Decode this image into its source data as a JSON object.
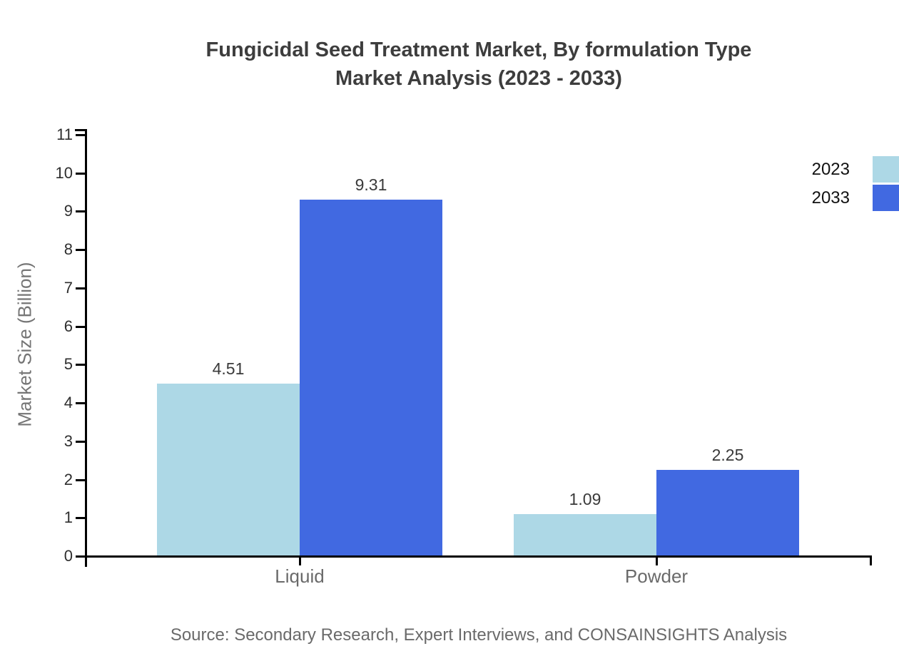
{
  "title": {
    "line1": "Fungicidal Seed Treatment Market, By formulation Type",
    "line2": "Market Analysis (2023 - 2033)"
  },
  "source": "Source: Secondary Research, Expert Interviews, and CONSAINSIGHTS Analysis",
  "colors": {
    "series_2023": "#ADD8E6",
    "series_2033": "#4169E1",
    "axis": "#000000",
    "title_text": "#3d3d3d",
    "muted_text": "#6a6a6a"
  },
  "chart_data": {
    "type": "bar",
    "title": "Fungicidal Seed Treatment Market, By formulation Type Market Analysis (2023 - 2033)",
    "categories": [
      "Liquid",
      "Powder"
    ],
    "series": [
      {
        "name": "2023",
        "color": "#ADD8E6",
        "values": [
          4.51,
          1.09
        ]
      },
      {
        "name": "2033",
        "color": "#4169E1",
        "values": [
          9.31,
          2.25
        ]
      }
    ],
    "value_labels": [
      [
        "4.51",
        "1.09"
      ],
      [
        "9.31",
        "2.25"
      ]
    ],
    "xlabel": "",
    "ylabel": "Market Size (Billion)",
    "ylim": [
      0,
      11
    ],
    "yticks": [
      0,
      1,
      2,
      3,
      4,
      5,
      6,
      7,
      8,
      9,
      10,
      11
    ],
    "grid": false,
    "legend_position": "top-right"
  }
}
